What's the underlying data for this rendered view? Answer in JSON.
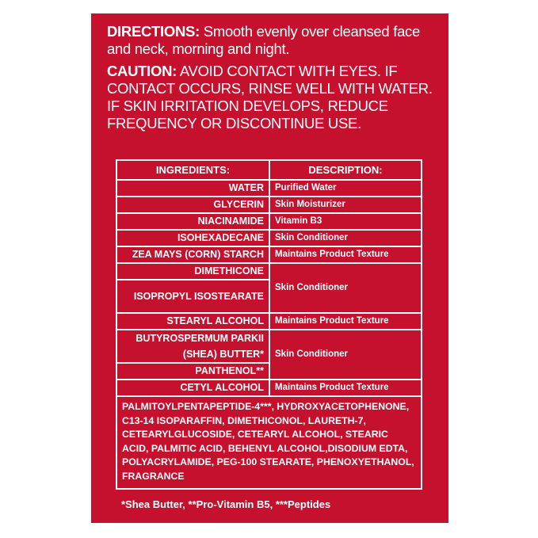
{
  "colors": {
    "panel": "#c5102e",
    "text": "#ffffff"
  },
  "directions": {
    "label": "DIRECTIONS:",
    "text": " Smooth evenly over cleansed face and neck, morning and night."
  },
  "caution": {
    "label": "CAUTION:",
    "text": " AVOID CONTACT WITH EYES. IF CONTACT OCCURS, RINSE WELL WITH WATER. IF SKIN IRRITATION DEVELOPS, REDUCE FREQUENCY OR DISCONTINUE USE."
  },
  "table": {
    "headers": [
      "INGREDIENTS:",
      "DESCRIPTION:"
    ],
    "rows": [
      {
        "ingredient": "WATER",
        "description": "Purified Water"
      },
      {
        "ingredient": "GLYCERIN",
        "description": "Skin Moisturizer"
      },
      {
        "ingredient": "NIACINAMIDE",
        "description": "Vitamin B3"
      },
      {
        "ingredient": "ISOHEXADECANE",
        "description": "Skin Conditioner"
      },
      {
        "ingredient": "ZEA MAYS (CORN) STARCH",
        "description": "Maintains Product Texture"
      },
      {
        "ingredient": "DIMETHICONE",
        "description": "Skin Conditioner"
      },
      {
        "ingredient": "ISOPROPYL ISOSTEARATE"
      },
      {
        "ingredient": "STEARYL ALCOHOL",
        "description": "Maintains Product Texture"
      },
      {
        "ingredient": "BUTYROSPERMUM PARKII (SHEA) BUTTER*",
        "description": "Skin Conditioner"
      },
      {
        "ingredient": "PANTHENOL**"
      },
      {
        "ingredient": "CETYL ALCOHOL",
        "description": "Maintains Product Texture"
      }
    ],
    "other_ingredients": "PALMITOYLPENTAPEPTIDE-4***, HYDROXYACETOPHENONE, C13-14 ISOPARAFFIN, DIMETHICONOL, LAURETH-7, CETEARYLGLUCOSIDE, CETEARYL ALCOHOL, STEARIC ACID, PALMITIC ACID, BEHENYL ALCOHOL,DISODIUM EDTA, POLYACRYLAMIDE, PEG-100 STEARATE, PHENOXYETHANOL, FRAGRANCE"
  },
  "footnote": "*Shea Butter, **Pro-Vitamin B5, ***Peptides"
}
